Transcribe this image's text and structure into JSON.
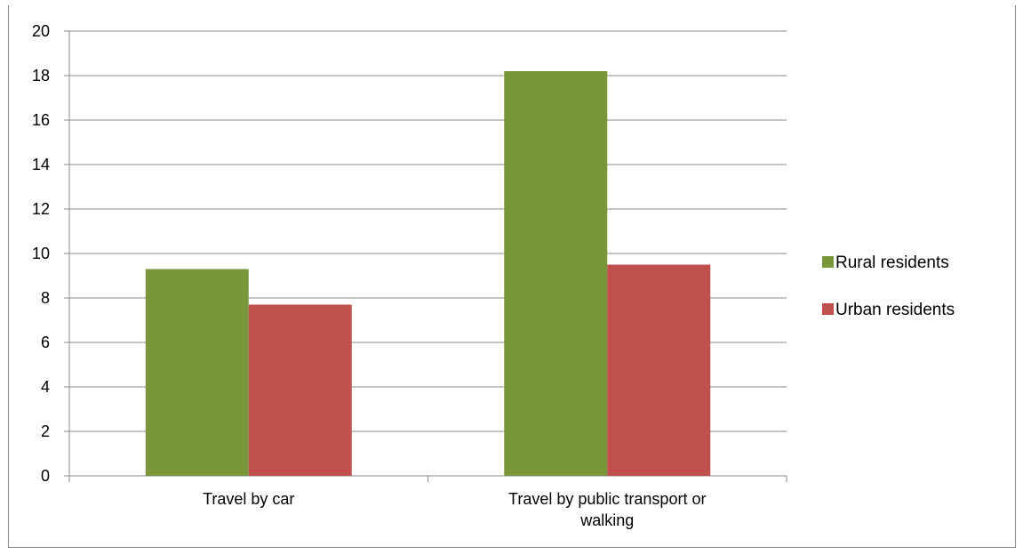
{
  "chart_data": {
    "type": "bar",
    "title": "",
    "xlabel": "",
    "ylabel": "",
    "categories": [
      "Travel by car",
      "Travel by public transport or walking"
    ],
    "series": [
      {
        "name": "Rural residents",
        "color": "#7A963B",
        "values": [
          9.3,
          18.2
        ]
      },
      {
        "name": "Urban residents",
        "color": "#C0504D",
        "values": [
          7.7,
          9.5
        ]
      }
    ],
    "ylim": [
      0,
      20
    ],
    "yticks": [
      "0",
      "2",
      "4",
      "6",
      "8",
      "10",
      "12",
      "14",
      "16",
      "18",
      "20"
    ],
    "grid": true,
    "gridline_color": "#8a8a8a",
    "legend_position": "right"
  }
}
